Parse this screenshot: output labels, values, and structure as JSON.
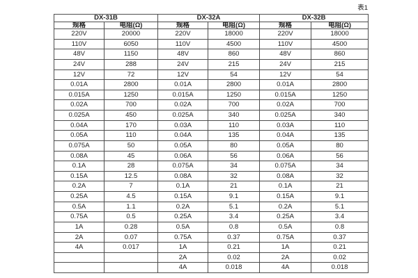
{
  "caption": "表1",
  "table": {
    "groups": [
      {
        "name": "DX-31B",
        "spec_header": "规格",
        "res_header": "电阻(Ω)",
        "rows": [
          [
            "220V",
            "20000"
          ],
          [
            "110V",
            "6050"
          ],
          [
            "48V",
            "1150"
          ],
          [
            "24V",
            "288"
          ],
          [
            "12V",
            "72"
          ],
          [
            "0.01A",
            "2800"
          ],
          [
            "0.015A",
            "1250"
          ],
          [
            "0.02A",
            "700"
          ],
          [
            "0.025A",
            "450"
          ],
          [
            "0.04A",
            "170"
          ],
          [
            "0.05A",
            "110"
          ],
          [
            "0.075A",
            "50"
          ],
          [
            "0.08A",
            "45"
          ],
          [
            "0.1A",
            "28"
          ],
          [
            "0.15A",
            "12.5"
          ],
          [
            "0.2A",
            "7"
          ],
          [
            "0.25A",
            "4.5"
          ],
          [
            "0.5A",
            "1.1"
          ],
          [
            "0.75A",
            "0.5"
          ],
          [
            "1A",
            "0.28"
          ],
          [
            "2A",
            "0.07"
          ],
          [
            "4A",
            "0.017"
          ],
          [
            "",
            ""
          ],
          [
            "",
            ""
          ]
        ]
      },
      {
        "name": "DX-32A",
        "spec_header": "规格",
        "res_header": "电阻(Ω)",
        "rows": [
          [
            "220V",
            "18000"
          ],
          [
            "110V",
            "4500"
          ],
          [
            "48V",
            "860"
          ],
          [
            "24V",
            "215"
          ],
          [
            "12V",
            "54"
          ],
          [
            "0.01A",
            "2800"
          ],
          [
            "0.015A",
            "1250"
          ],
          [
            "0.02A",
            "700"
          ],
          [
            "0.025A",
            "340"
          ],
          [
            "0.03A",
            "110"
          ],
          [
            "0.04A",
            "135"
          ],
          [
            "0.05A",
            "80"
          ],
          [
            "0.06A",
            "56"
          ],
          [
            "0.075A",
            "34"
          ],
          [
            "0.08A",
            "32"
          ],
          [
            "0.1A",
            "21"
          ],
          [
            "0.15A",
            "9.1"
          ],
          [
            "0.2A",
            "5.1"
          ],
          [
            "0.25A",
            "3.4"
          ],
          [
            "0.5A",
            "0.8"
          ],
          [
            "0.75A",
            "0.37"
          ],
          [
            "1A",
            "0.21"
          ],
          [
            "2A",
            "0.02"
          ],
          [
            "4A",
            "0.018"
          ]
        ]
      },
      {
        "name": "DX-32B",
        "spec_header": "规格",
        "res_header": "电阻(Ω)",
        "rows": [
          [
            "220V",
            "18000"
          ],
          [
            "110V",
            "4500"
          ],
          [
            "48V",
            "860"
          ],
          [
            "24V",
            "215"
          ],
          [
            "12V",
            "54"
          ],
          [
            "0.01A",
            "2800"
          ],
          [
            "0.015A",
            "1250"
          ],
          [
            "0.02A",
            "700"
          ],
          [
            "0.025A",
            "340"
          ],
          [
            "0.03A",
            "110"
          ],
          [
            "0.04A",
            "135"
          ],
          [
            "0.05A",
            "80"
          ],
          [
            "0.06A",
            "56"
          ],
          [
            "0.075A",
            "34"
          ],
          [
            "0.08A",
            "32"
          ],
          [
            "0.1A",
            "21"
          ],
          [
            "0.15A",
            "9.1"
          ],
          [
            "0.2A",
            "5.1"
          ],
          [
            "0.25A",
            "3.4"
          ],
          [
            "0.5A",
            "0.8"
          ],
          [
            "0.75A",
            "0.37"
          ],
          [
            "1A",
            "0.21"
          ],
          [
            "2A",
            "0.02"
          ],
          [
            "4A",
            "0.018"
          ]
        ]
      }
    ]
  }
}
